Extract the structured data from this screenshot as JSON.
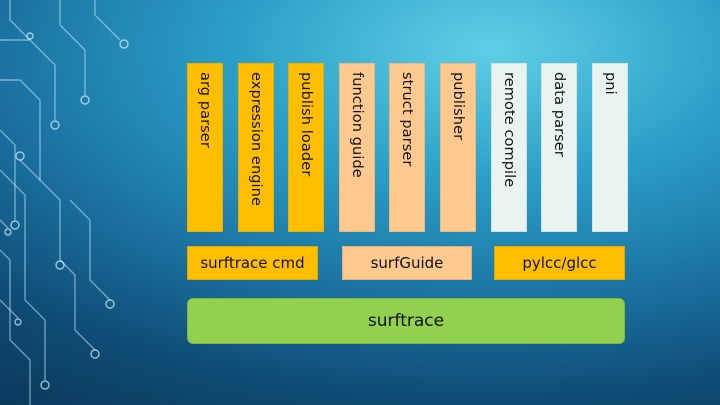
{
  "modules": {
    "arg_parser": "arg parser",
    "expression_engine": "expression engine",
    "publish_loader": "publish loader",
    "function_guide": "function guide",
    "struct_parser": "struct parser",
    "publisher": "publisher",
    "remote_compile": "remote compile",
    "data_parser": "data parser",
    "pni": "pni"
  },
  "groups": {
    "surftrace_cmd": "surftrace cmd",
    "surfguide": "surfGuide",
    "pylcc_glcc": "pylcc/glcc"
  },
  "base": {
    "surftrace": "surftrace"
  },
  "colors": {
    "gold": "#ffbf00",
    "peach": "#fdc98e",
    "mint": "#e9f3ef",
    "green": "#92d050"
  }
}
